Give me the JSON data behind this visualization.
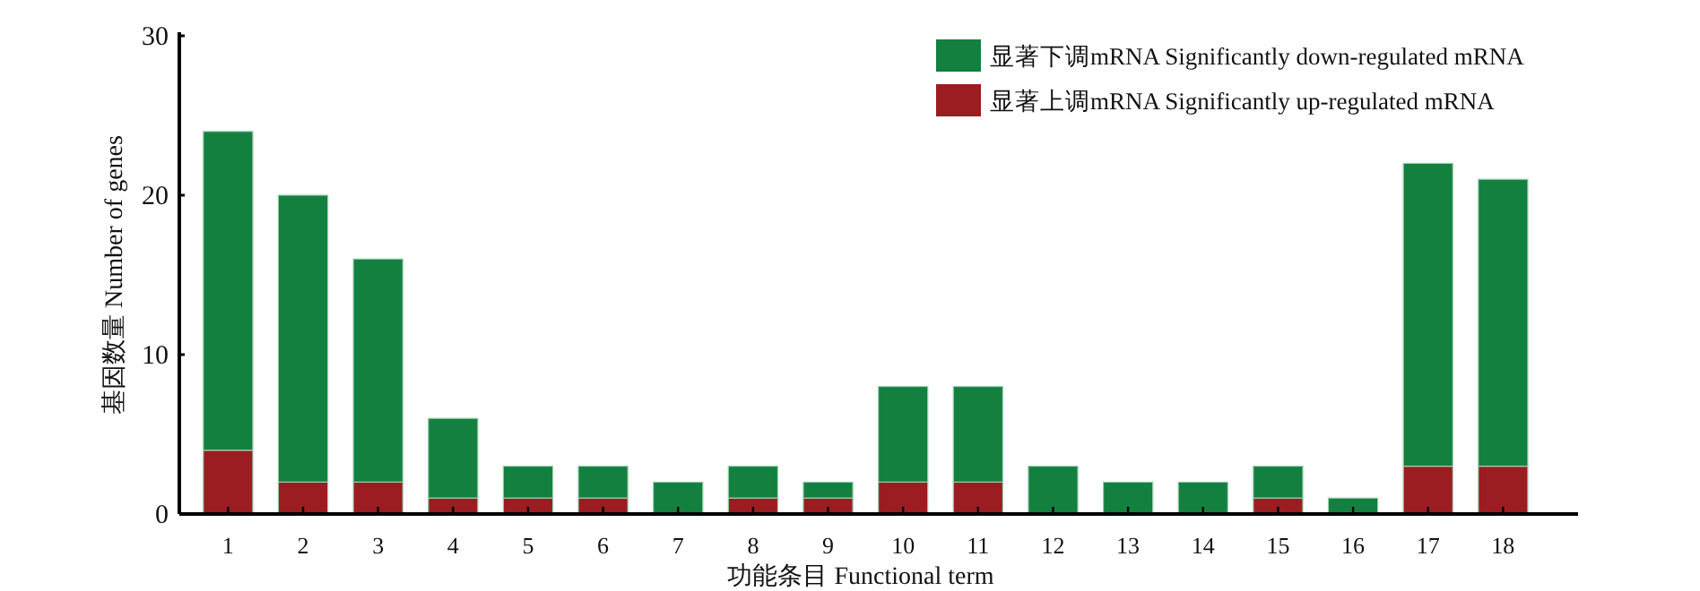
{
  "chart_data": {
    "type": "bar",
    "stacked": true,
    "xlabel": "功能条目  Functional term",
    "ylabel": "基因数量 Number of genes",
    "categories": [
      "1",
      "2",
      "3",
      "4",
      "5",
      "6",
      "7",
      "8",
      "9",
      "10",
      "11",
      "12",
      "13",
      "14",
      "15",
      "16",
      "17",
      "18"
    ],
    "series": [
      {
        "name": "显著上调mRNA Significantly up-regulated mRNA",
        "color": "#9b1c21",
        "values": [
          4,
          2,
          2,
          1,
          1,
          1,
          0,
          1,
          1,
          2,
          2,
          0,
          0,
          0,
          1,
          0,
          3,
          3
        ]
      },
      {
        "name": "显著下调mRNA Significantly down-regulated mRNA",
        "color": "#138040",
        "values": [
          20,
          18,
          14,
          5,
          2,
          2,
          2,
          2,
          1,
          6,
          6,
          3,
          2,
          2,
          2,
          1,
          19,
          18
        ]
      }
    ],
    "ylim": [
      0,
      30
    ],
    "yticks": [
      0,
      10,
      20,
      30
    ],
    "legend": "top right"
  }
}
